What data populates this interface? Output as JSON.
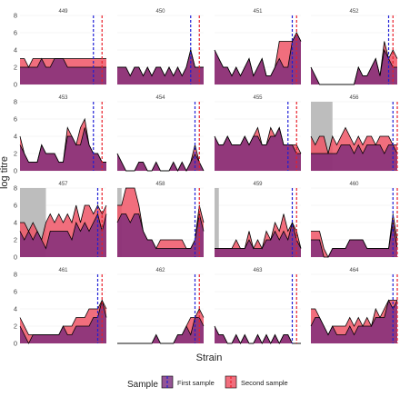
{
  "chart_data": {
    "type": "area",
    "xlabel": "Strain",
    "ylabel": "log titre",
    "y_ticks": [
      0,
      2,
      4,
      6,
      8
    ],
    "ylim": [
      0,
      8
    ],
    "n_strains": 21,
    "grid": true,
    "legend": {
      "title": "Sample",
      "position": "bottom",
      "entries": [
        {
          "label": "First sample",
          "color": "#3333dd"
        },
        {
          "label": "Second sample",
          "color": "#ee2222"
        }
      ]
    },
    "colors": {
      "first_fill": "#7a2a7a",
      "second_fill": "#ee5566",
      "first_line": "#1f1fd6",
      "second_line": "#e8202a",
      "shade": "#bdbdbd",
      "grid": "#ebebeb"
    },
    "panels": [
      {
        "id": "449",
        "first": [
          2,
          2,
          2,
          2,
          2,
          3,
          2,
          2,
          3,
          3,
          3,
          2,
          2,
          2,
          2,
          2,
          2,
          2,
          2,
          2,
          2
        ],
        "second": [
          3,
          3,
          2,
          3,
          3,
          3,
          3,
          3,
          3,
          3,
          3,
          3,
          3,
          3,
          3,
          3,
          3,
          3,
          3,
          3,
          3
        ],
        "first_line_x": 17,
        "second_line_x": 19,
        "shade": null
      },
      {
        "id": "450",
        "first": [
          2,
          2,
          2,
          1,
          2,
          2,
          1,
          2,
          1,
          2,
          2,
          1,
          2,
          1,
          2,
          1,
          2,
          4,
          2,
          2,
          2
        ],
        "second": [
          2,
          2,
          2,
          1,
          2,
          2,
          1,
          2,
          1,
          2,
          2,
          1,
          2,
          1,
          2,
          1,
          2,
          4,
          2,
          2,
          2
        ],
        "first_line_x": 17,
        "second_line_x": 19,
        "shade": null
      },
      {
        "id": "451",
        "first": [
          4,
          3,
          2,
          2,
          1,
          2,
          1,
          2,
          3,
          1,
          2,
          3,
          1,
          1,
          2,
          3,
          2,
          2,
          5,
          6,
          5
        ],
        "second": [
          4,
          3,
          2,
          2,
          1,
          2,
          1,
          2,
          3,
          1,
          2,
          3,
          1,
          1,
          2,
          5,
          5,
          5,
          5,
          6,
          5
        ],
        "first_line_x": 18,
        "second_line_x": 19,
        "shade": null
      },
      {
        "id": "452",
        "first": [
          2,
          1,
          0,
          0,
          0,
          0,
          0,
          0,
          0,
          0,
          0,
          2,
          1,
          1,
          2,
          3,
          1,
          4,
          3,
          2,
          2
        ],
        "second": [
          2,
          1,
          0,
          0,
          0,
          0,
          0,
          0,
          0,
          0,
          0,
          2,
          1,
          1,
          2,
          3,
          1,
          5,
          3,
          4,
          3
        ],
        "first_line_x": 18,
        "second_line_x": 19,
        "shade": null
      },
      {
        "id": "453",
        "first": [
          3,
          2,
          1,
          1,
          1,
          3,
          2,
          2,
          2,
          1,
          1,
          4,
          4,
          3,
          3,
          5,
          3,
          2,
          2,
          1,
          1
        ],
        "second": [
          4,
          2,
          1,
          1,
          1,
          3,
          2,
          2,
          2,
          1,
          1,
          5,
          4,
          3,
          5,
          6,
          3,
          2,
          2,
          1,
          1
        ],
        "first_line_x": 17,
        "second_line_x": 19,
        "shade": null
      },
      {
        "id": "454",
        "first": [
          2,
          1,
          0,
          0,
          0,
          1,
          1,
          0,
          0,
          1,
          0,
          0,
          0,
          1,
          0,
          1,
          0,
          1,
          2,
          1,
          0
        ],
        "second": [
          2,
          1,
          0,
          0,
          0,
          1,
          1,
          0,
          0,
          1,
          0,
          0,
          0,
          1,
          0,
          1,
          0,
          1,
          3,
          1,
          0
        ],
        "first_line_x": 18,
        "second_line_x": 19,
        "shade": null
      },
      {
        "id": "455",
        "first": [
          4,
          3,
          3,
          4,
          3,
          3,
          3,
          4,
          3,
          4,
          4,
          3,
          3,
          4,
          4,
          5,
          3,
          3,
          3,
          2,
          2
        ],
        "second": [
          4,
          3,
          3,
          4,
          3,
          3,
          3,
          4,
          3,
          4,
          5,
          3,
          3,
          5,
          4,
          5,
          3,
          3,
          3,
          3,
          2
        ],
        "first_line_x": 17,
        "second_line_x": 19,
        "shade": null
      },
      {
        "id": "456",
        "first": [
          2,
          2,
          2,
          2,
          2,
          2,
          2,
          3,
          3,
          3,
          2,
          3,
          2,
          3,
          3,
          3,
          3,
          2,
          3,
          3,
          2
        ],
        "second": [
          4,
          3,
          4,
          4,
          2,
          4,
          3,
          4,
          5,
          4,
          3,
          4,
          3,
          4,
          4,
          3,
          4,
          4,
          4,
          3,
          3
        ],
        "first_line_x": 19,
        "second_line_x": 20,
        "shade": [
          0,
          5
        ]
      },
      {
        "id": "457",
        "first": [
          3,
          2,
          3,
          2,
          3,
          2,
          1,
          3,
          3,
          3,
          3,
          3,
          2,
          4,
          3,
          4,
          3,
          4,
          5,
          3,
          5
        ],
        "second": [
          4,
          4,
          3,
          4,
          3,
          2,
          4,
          5,
          4,
          5,
          4,
          5,
          4,
          6,
          4,
          6,
          6,
          5,
          6,
          5,
          6
        ],
        "first_line_x": 18,
        "second_line_x": 19,
        "shade": [
          0,
          6
        ]
      },
      {
        "id": "458",
        "first": [
          4,
          5,
          5,
          4,
          5,
          5,
          3,
          2,
          2,
          1,
          1,
          1,
          1,
          1,
          1,
          1,
          1,
          1,
          2,
          5,
          3
        ],
        "second": [
          6,
          6,
          8,
          8,
          8,
          6,
          3,
          2,
          2,
          1,
          2,
          2,
          2,
          2,
          2,
          2,
          1,
          1,
          2,
          6,
          4
        ],
        "first_line_x": 18,
        "second_line_x": 19,
        "shade": [
          0,
          1
        ]
      },
      {
        "id": "459",
        "first": [
          1,
          1,
          1,
          1,
          1,
          1,
          1,
          1,
          2,
          1,
          1,
          1,
          2,
          2,
          3,
          2,
          3,
          2,
          4,
          2,
          1
        ],
        "second": [
          1,
          1,
          1,
          1,
          1,
          2,
          1,
          1,
          3,
          1,
          2,
          1,
          3,
          2,
          4,
          3,
          5,
          3,
          4,
          3,
          1
        ],
        "first_line_x": 18,
        "second_line_x": 19,
        "shade": [
          0,
          1
        ]
      },
      {
        "id": "460",
        "first": [
          2,
          2,
          2,
          0,
          0,
          1,
          1,
          1,
          1,
          2,
          2,
          2,
          2,
          1,
          1,
          1,
          1,
          1,
          1,
          4,
          1
        ],
        "second": [
          3,
          3,
          3,
          1,
          0,
          1,
          1,
          1,
          1,
          2,
          2,
          2,
          2,
          1,
          1,
          1,
          1,
          1,
          1,
          5,
          2
        ],
        "first_line_x": 19,
        "second_line_x": 20,
        "shade": null
      },
      {
        "id": "461",
        "first": [
          2,
          1,
          0,
          1,
          1,
          1,
          1,
          1,
          1,
          1,
          2,
          1,
          1,
          2,
          2,
          2,
          2,
          3,
          3,
          5,
          3
        ],
        "second": [
          3,
          2,
          1,
          1,
          1,
          1,
          1,
          1,
          1,
          1,
          2,
          2,
          2,
          3,
          3,
          3,
          4,
          4,
          4,
          5,
          4
        ],
        "first_line_x": 18,
        "second_line_x": 19,
        "shade": null
      },
      {
        "id": "462",
        "first": [
          0,
          0,
          0,
          0,
          0,
          0,
          0,
          0,
          0,
          1,
          0,
          0,
          0,
          0,
          1,
          1,
          2,
          1,
          3,
          3,
          2
        ],
        "second": [
          0,
          0,
          0,
          0,
          0,
          0,
          0,
          0,
          0,
          1,
          0,
          0,
          0,
          0,
          1,
          1,
          2,
          3,
          3,
          4,
          3
        ],
        "first_line_x": 18,
        "second_line_x": 19,
        "shade": null
      },
      {
        "id": "463",
        "first": [
          2,
          1,
          1,
          0,
          0,
          1,
          0,
          1,
          0,
          0,
          1,
          0,
          1,
          0,
          1,
          0,
          1,
          1,
          0,
          0,
          0
        ],
        "second": [
          2,
          1,
          1,
          0,
          0,
          1,
          0,
          1,
          0,
          0,
          1,
          0,
          1,
          0,
          1,
          0,
          1,
          1,
          0,
          0,
          0
        ],
        "first_line_x": 18,
        "second_line_x": 19,
        "shade": null
      },
      {
        "id": "464",
        "first": [
          2,
          3,
          3,
          2,
          1,
          2,
          1,
          1,
          1,
          2,
          1,
          2,
          2,
          2,
          2,
          3,
          3,
          3,
          5,
          4,
          5
        ],
        "second": [
          4,
          4,
          3,
          2,
          1,
          2,
          2,
          2,
          2,
          3,
          2,
          3,
          2,
          3,
          2,
          4,
          3,
          4,
          5,
          5,
          5
        ],
        "first_line_x": 19,
        "second_line_x": 20,
        "shade": null
      }
    ]
  }
}
